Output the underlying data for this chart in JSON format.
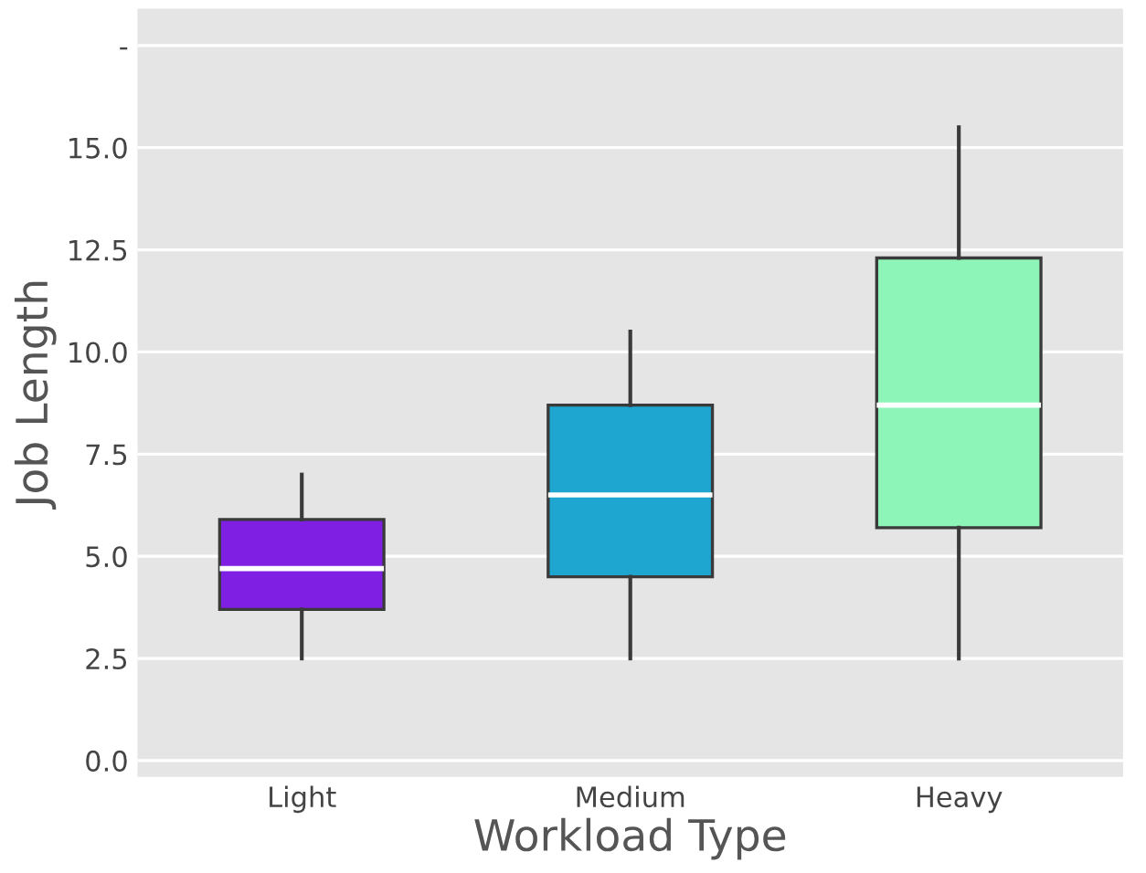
{
  "chart_data": {
    "type": "box",
    "xlabel": "Workload Type",
    "ylabel": "Job Length",
    "categories": [
      "Light",
      "Medium",
      "Heavy"
    ],
    "boxes": [
      {
        "low": 2.5,
        "q1": 3.7,
        "median": 4.7,
        "q3": 5.9,
        "high": 7.0
      },
      {
        "low": 2.5,
        "q1": 4.5,
        "median": 6.5,
        "q3": 8.7,
        "high": 10.5
      },
      {
        "low": 2.5,
        "q1": 5.7,
        "median": 8.7,
        "q3": 12.3,
        "high": 15.5
      }
    ],
    "colors": [
      "#7f1fe3",
      "#1ea6d0",
      "#8ef5b8"
    ],
    "ylim": [
      -0.4,
      18.4
    ],
    "yticks": [
      {
        "value": 0,
        "label": "0.0"
      },
      2.5,
      {
        "value": 5,
        "label": "5.0"
      },
      7.5,
      {
        "value": 10,
        "label": "10.0"
      },
      12.5,
      {
        "value": 15,
        "label": "15.0"
      },
      {
        "value": 17.5,
        "label": "-"
      }
    ],
    "grid": "y"
  }
}
